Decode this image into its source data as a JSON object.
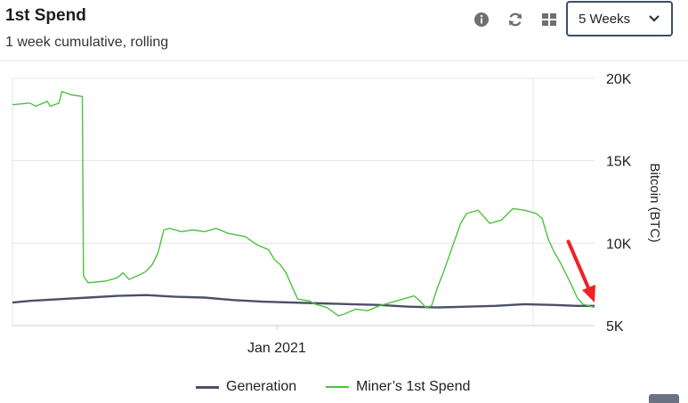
{
  "header": {
    "title": "1st Spend",
    "subtitle": "1 week cumulative, rolling"
  },
  "toolbar": {
    "icons": [
      "info-icon",
      "refresh-icon",
      "grid-icon"
    ],
    "range_select": {
      "value": "5 Weeks"
    }
  },
  "colors": {
    "generation": "#4a5068",
    "miners_first_spend": "#4cc23e",
    "annotation_arrow": "#ee2222",
    "grid": "#e6e6e6"
  },
  "chart_data": {
    "type": "line",
    "ylabel": "Bitcoin (BTC)",
    "ylim": [
      5000,
      20000
    ],
    "yticks": [
      {
        "value": 5000,
        "label": "5K"
      },
      {
        "value": 10000,
        "label": "10K"
      },
      {
        "value": 15000,
        "label": "15K"
      },
      {
        "value": 20000,
        "label": "20K"
      }
    ],
    "xlim": [
      0,
      100
    ],
    "xticks": [
      {
        "value": 45.4,
        "label": "Jan 2021"
      }
    ],
    "legend_position": "bottom",
    "grid": true,
    "series": [
      {
        "name": "Generation",
        "color": "#4a5068",
        "points": [
          [
            0,
            6400
          ],
          [
            3,
            6500
          ],
          [
            8,
            6600
          ],
          [
            13,
            6700
          ],
          [
            18,
            6800
          ],
          [
            23,
            6850
          ],
          [
            28,
            6750
          ],
          [
            33,
            6700
          ],
          [
            38,
            6550
          ],
          [
            43,
            6450
          ],
          [
            48,
            6400
          ],
          [
            53,
            6350
          ],
          [
            58,
            6300
          ],
          [
            63,
            6250
          ],
          [
            68,
            6150
          ],
          [
            73,
            6100
          ],
          [
            78,
            6150
          ],
          [
            83,
            6200
          ],
          [
            88,
            6300
          ],
          [
            93,
            6250
          ],
          [
            97,
            6200
          ],
          [
            100,
            6200
          ]
        ]
      },
      {
        "name": "Miner’s 1st Spend",
        "color": "#4cc23e",
        "points": [
          [
            0,
            18400
          ],
          [
            3,
            18500
          ],
          [
            4,
            18300
          ],
          [
            6,
            18600
          ],
          [
            6.5,
            18300
          ],
          [
            8,
            18500
          ],
          [
            8.5,
            19200
          ],
          [
            10,
            19000
          ],
          [
            12,
            18900
          ],
          [
            12.2,
            8000
          ],
          [
            13,
            7600
          ],
          [
            16,
            7700
          ],
          [
            18,
            7900
          ],
          [
            19,
            8200
          ],
          [
            20,
            7800
          ],
          [
            22,
            8100
          ],
          [
            23,
            8300
          ],
          [
            24,
            8700
          ],
          [
            25,
            9400
          ],
          [
            26,
            10800
          ],
          [
            27,
            10900
          ],
          [
            29,
            10700
          ],
          [
            31,
            10800
          ],
          [
            33,
            10700
          ],
          [
            35,
            10900
          ],
          [
            37,
            10600
          ],
          [
            40,
            10400
          ],
          [
            42,
            9900
          ],
          [
            44,
            9600
          ],
          [
            45,
            9000
          ],
          [
            46,
            8700
          ],
          [
            47,
            8200
          ],
          [
            48,
            7400
          ],
          [
            49,
            6600
          ],
          [
            51,
            6500
          ],
          [
            52,
            6300
          ],
          [
            54,
            6100
          ],
          [
            56,
            5600
          ],
          [
            57,
            5700
          ],
          [
            59,
            6000
          ],
          [
            61,
            5900
          ],
          [
            63,
            6200
          ],
          [
            65,
            6400
          ],
          [
            67,
            6600
          ],
          [
            69,
            6800
          ],
          [
            70,
            6500
          ],
          [
            71,
            6100
          ],
          [
            72,
            6200
          ],
          [
            73,
            7300
          ],
          [
            74,
            8200
          ],
          [
            75,
            9200
          ],
          [
            76,
            10200
          ],
          [
            77,
            11200
          ],
          [
            78,
            11800
          ],
          [
            80,
            12000
          ],
          [
            82,
            11200
          ],
          [
            84,
            11400
          ],
          [
            86,
            12100
          ],
          [
            88,
            12000
          ],
          [
            90,
            11800
          ],
          [
            91,
            11500
          ],
          [
            92,
            10300
          ],
          [
            93,
            9500
          ],
          [
            94,
            8900
          ],
          [
            95,
            8200
          ],
          [
            96,
            7500
          ],
          [
            97,
            6700
          ],
          [
            98,
            6300
          ],
          [
            100,
            6100
          ]
        ]
      }
    ],
    "annotation": {
      "type": "arrow",
      "from": [
        95.5,
        10100
      ],
      "to": [
        100,
        6400
      ]
    }
  },
  "legend": [
    {
      "label": "Generation",
      "color": "#4a5068"
    },
    {
      "label": "Miner’s 1st Spend",
      "color": "#4cc23e"
    }
  ]
}
